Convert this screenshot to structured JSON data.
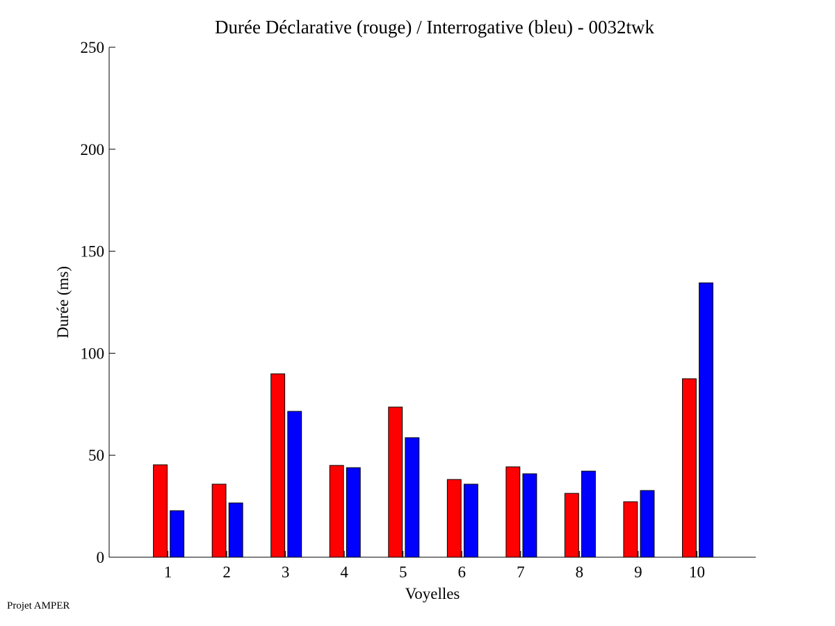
{
  "chart_data": {
    "type": "bar",
    "title": "Durée Déclarative (rouge) / Interrogative (bleu) - 0032twk",
    "xlabel": "Voyelles",
    "ylabel": "Durée (ms)",
    "categories": [
      "1",
      "2",
      "3",
      "4",
      "5",
      "6",
      "7",
      "8",
      "9",
      "10"
    ],
    "ylim": [
      0,
      250
    ],
    "xlim": [
      0,
      11
    ],
    "yticks": [
      0,
      50,
      100,
      150,
      200,
      250
    ],
    "grid": false,
    "series": [
      {
        "name": "Déclarative",
        "color": "#ff0000",
        "values": [
          45.3,
          35.8,
          89.9,
          45.0,
          73.6,
          38.1,
          44.3,
          31.3,
          27.2,
          87.5
        ]
      },
      {
        "name": "Interrogative",
        "color": "#0000ff",
        "values": [
          22.8,
          26.6,
          71.5,
          43.9,
          58.6,
          35.8,
          40.9,
          42.2,
          32.7,
          134.5
        ]
      }
    ]
  },
  "footer": "Projet AMPER"
}
